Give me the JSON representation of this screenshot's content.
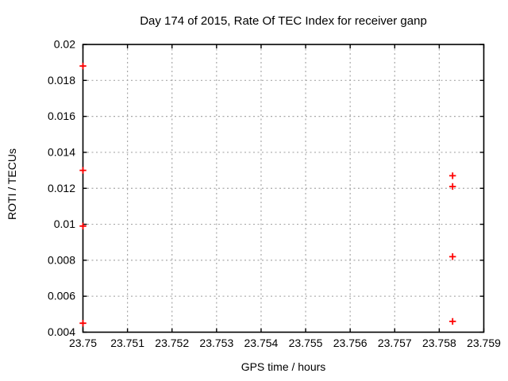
{
  "chart_data": {
    "type": "scatter",
    "title": "Day 174 of 2015, Rate Of TEC Index for receiver ganp",
    "xlabel": "GPS time / hours",
    "ylabel": "ROTI / TECUs",
    "xlim": [
      23.75,
      23.759
    ],
    "ylim": [
      0.004,
      0.02
    ],
    "grid": true,
    "legend_position": "none",
    "marker": "plus",
    "marker_color": "#ff0000",
    "grid_color": "#a8a8a8",
    "axis_color": "#000000",
    "background_color": "#ffffff",
    "x_ticks": [
      {
        "value": 23.75,
        "label": "23.75"
      },
      {
        "value": 23.751,
        "label": "23.751"
      },
      {
        "value": 23.752,
        "label": "23.752"
      },
      {
        "value": 23.753,
        "label": "23.753"
      },
      {
        "value": 23.754,
        "label": "23.754"
      },
      {
        "value": 23.755,
        "label": "23.755"
      },
      {
        "value": 23.756,
        "label": "23.756"
      },
      {
        "value": 23.757,
        "label": "23.757"
      },
      {
        "value": 23.758,
        "label": "23.758"
      },
      {
        "value": 23.759,
        "label": "23.759"
      }
    ],
    "y_ticks": [
      {
        "value": 0.004,
        "label": "0.004"
      },
      {
        "value": 0.006,
        "label": "0.006"
      },
      {
        "value": 0.008,
        "label": "0.008"
      },
      {
        "value": 0.01,
        "label": "0.01"
      },
      {
        "value": 0.012,
        "label": "0.012"
      },
      {
        "value": 0.014,
        "label": "0.014"
      },
      {
        "value": 0.016,
        "label": "0.016"
      },
      {
        "value": 0.018,
        "label": "0.018"
      },
      {
        "value": 0.02,
        "label": "0.02"
      }
    ],
    "series": [
      {
        "points": [
          [
            23.75,
            0.0188
          ],
          [
            23.75,
            0.013
          ],
          [
            23.75,
            0.0099
          ],
          [
            23.75,
            0.0045
          ],
          [
            23.7583,
            0.0127
          ],
          [
            23.7583,
            0.0121
          ],
          [
            23.7583,
            0.0082
          ],
          [
            23.7583,
            0.0046
          ]
        ]
      }
    ]
  }
}
